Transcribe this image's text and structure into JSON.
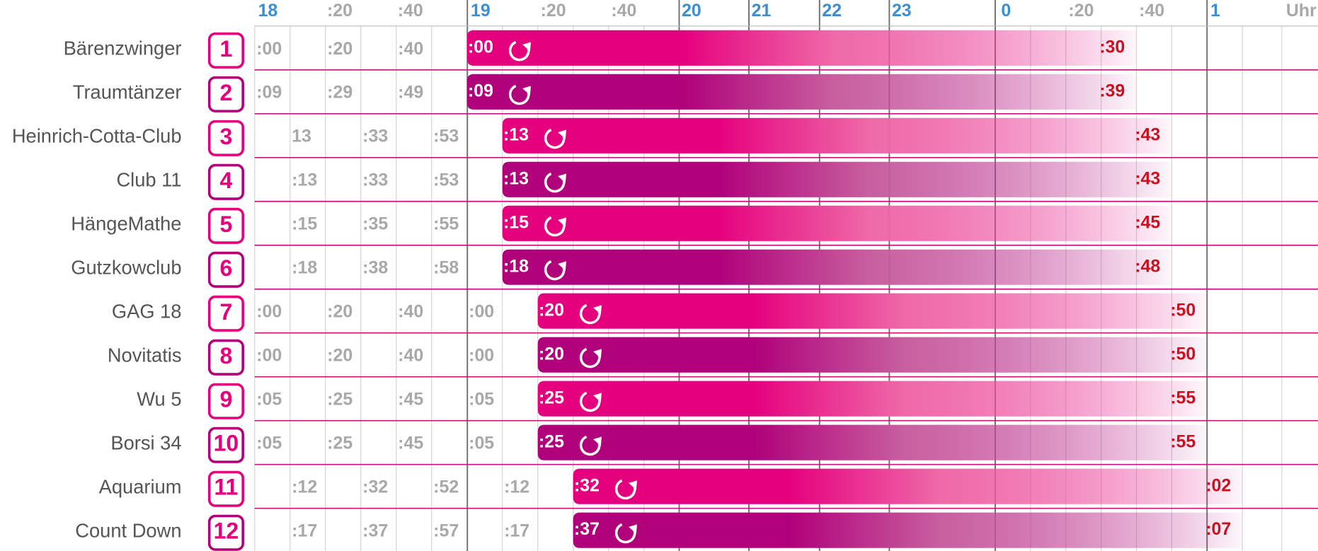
{
  "header": {
    "ticks": [
      "18",
      ":20",
      ":40",
      "19",
      ":20",
      ":40",
      "20",
      "21",
      "22",
      "23",
      "0",
      ":20",
      ":40",
      "1",
      "Uhr"
    ]
  },
  "rows": [
    {
      "name": "Bärenzwinger",
      "number": "1",
      "times": [
        ":00",
        ":20",
        ":40"
      ],
      "start": ":00",
      "end": ":30"
    },
    {
      "name": "Traumtänzer",
      "number": "2",
      "times": [
        ":09",
        ":29",
        ":49"
      ],
      "start": ":09",
      "end": ":39"
    },
    {
      "name": "Heinrich-Cotta-Club",
      "number": "3",
      "times": [
        "13",
        ":33",
        ":53"
      ],
      "start": ":13",
      "end": ":43"
    },
    {
      "name": "Club 11",
      "number": "4",
      "times": [
        ":13",
        ":33",
        ":53"
      ],
      "start": ":13",
      "end": ":43"
    },
    {
      "name": "HängeMathe",
      "number": "5",
      "times": [
        ":15",
        ":35",
        ":55"
      ],
      "start": ":15",
      "end": ":45"
    },
    {
      "name": "Gutzkowclub",
      "number": "6",
      "times": [
        ":18",
        ":38",
        ":58"
      ],
      "start": ":18",
      "end": ":48"
    },
    {
      "name": "GAG 18",
      "number": "7",
      "times": [
        ":00",
        ":20",
        ":40",
        ":00"
      ],
      "start": ":20",
      "end": ":50"
    },
    {
      "name": "Novitatis",
      "number": "8",
      "times": [
        ":00",
        ":20",
        ":40",
        ":00"
      ],
      "start": ":20",
      "end": ":50"
    },
    {
      "name": "Wu 5",
      "number": "9",
      "times": [
        ":05",
        ":25",
        ":45",
        ":05"
      ],
      "start": ":25",
      "end": ":55"
    },
    {
      "name": "Borsi 34",
      "number": "10",
      "times": [
        ":05",
        ":25",
        ":45",
        ":05"
      ],
      "start": ":25",
      "end": ":55"
    },
    {
      "name": "Aquarium",
      "number": "11",
      "times": [
        ":12",
        ":32",
        ":52",
        ":12"
      ],
      "start": ":32",
      "end": ":02"
    },
    {
      "name": "Count Down",
      "number": "12",
      "times": [
        ":17",
        ":37",
        ":57",
        ":17"
      ],
      "start": ":37",
      "end": ":07"
    }
  ]
}
